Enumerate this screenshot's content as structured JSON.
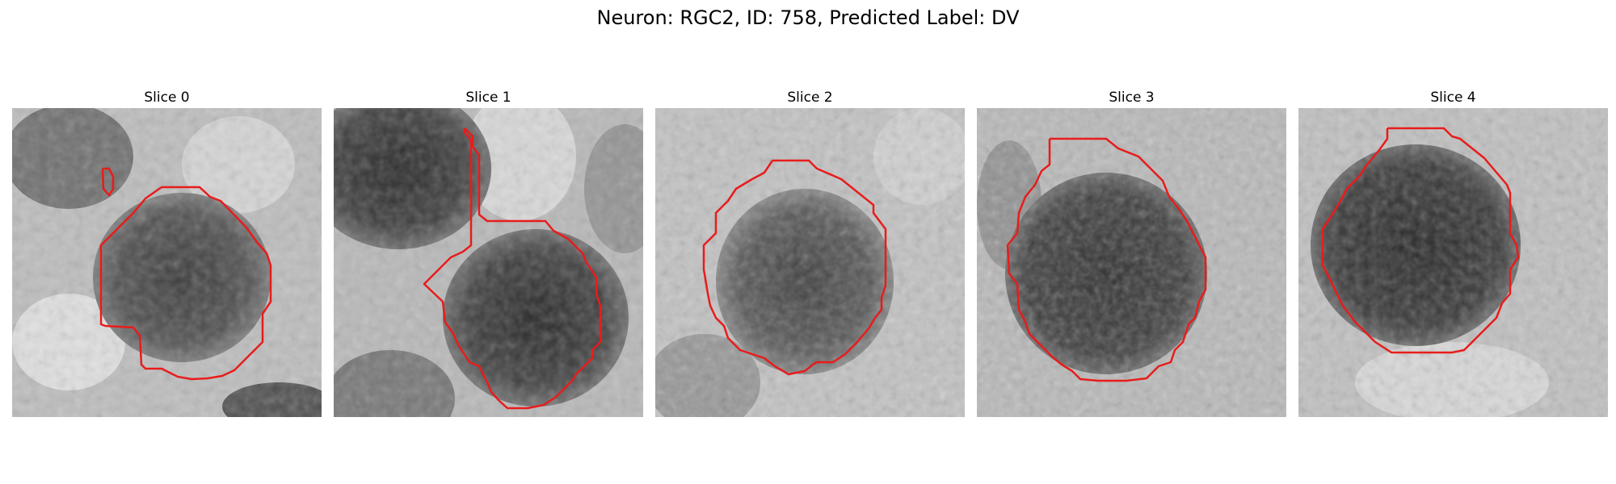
{
  "figure": {
    "title": "Neuron: RGC2, ID: 758, Predicted Label: DV"
  },
  "colors": {
    "contour": "#e81c1c",
    "background": "#ffffff"
  },
  "slices": [
    {
      "title": "Slice 0"
    },
    {
      "title": "Slice 1"
    },
    {
      "title": "Slice 2"
    },
    {
      "title": "Slice 3"
    },
    {
      "title": "Slice 4"
    }
  ]
}
